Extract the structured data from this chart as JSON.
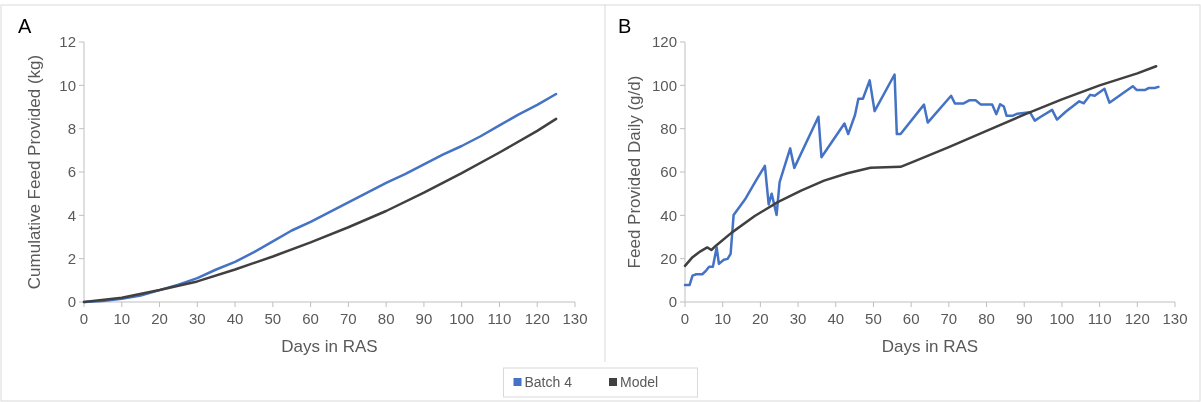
{
  "chart_data": [
    {
      "type": "line",
      "title": "A",
      "xlabel": "Days in RAS",
      "ylabel": "Cumulative Feed Provided (kg)",
      "xlim": [
        0,
        130
      ],
      "xticks": [
        0,
        10,
        20,
        30,
        40,
        50,
        60,
        70,
        80,
        90,
        100,
        110,
        120,
        130
      ],
      "ylim": [
        0,
        12
      ],
      "yticks": [
        0,
        2,
        4,
        6,
        8,
        10,
        12
      ],
      "grid": false,
      "legend": "bottom",
      "marker": "none",
      "series": [
        {
          "name": "Batch 4",
          "color": "#4472c4",
          "x": [
            0,
            5,
            10,
            15,
            20,
            25,
            30,
            35,
            40,
            45,
            50,
            55,
            60,
            65,
            70,
            75,
            80,
            85,
            90,
            95,
            100,
            105,
            110,
            115,
            120,
            125
          ],
          "values": [
            0,
            0.05,
            0.15,
            0.3,
            0.55,
            0.8,
            1.1,
            1.5,
            1.85,
            2.3,
            2.8,
            3.3,
            3.7,
            4.15,
            4.6,
            5.05,
            5.5,
            5.9,
            6.35,
            6.8,
            7.2,
            7.65,
            8.15,
            8.65,
            9.1,
            9.6
          ]
        },
        {
          "name": "Model",
          "color": "#404040",
          "x": [
            0,
            10,
            20,
            30,
            40,
            50,
            60,
            70,
            80,
            90,
            100,
            110,
            120,
            125
          ],
          "values": [
            0,
            0.2,
            0.55,
            0.95,
            1.5,
            2.1,
            2.75,
            3.45,
            4.2,
            5.05,
            5.95,
            6.9,
            7.9,
            8.45
          ]
        }
      ]
    },
    {
      "type": "line",
      "title": "B",
      "xlabel": "Days in RAS",
      "ylabel": "Feed Provided Daily (g/d)",
      "xlim": [
        0,
        130
      ],
      "xticks": [
        0,
        10,
        20,
        30,
        40,
        50,
        60,
        70,
        80,
        90,
        100,
        110,
        120,
        130
      ],
      "ylim": [
        0,
        120
      ],
      "yticks": [
        0,
        20,
        40,
        60,
        80,
        100,
        120
      ],
      "grid": false,
      "marker": "none",
      "series": [
        {
          "color": "#4472c4",
          "x": [
            0,
            1.2,
            2,
            3,
            4.6,
            5.6,
            6.4,
            7.4,
            8.4,
            9,
            10.3,
            11.3,
            12.1,
            12.9,
            15.9,
            18.9,
            21.2,
            22.2,
            23,
            24.3,
            25.1,
            27.9,
            29,
            35.4,
            36.2,
            42.3,
            43.3,
            45.1,
            46,
            47.2,
            49,
            50.3,
            55.6,
            56.2,
            57.2,
            63.4,
            64.4,
            70.6,
            71.6,
            73.8,
            75.4,
            77.1,
            78.5,
            81.5,
            82.6,
            83.6,
            84.6,
            85.3,
            87,
            88.2,
            91.5,
            92.8,
            94.4,
            97.4,
            98.7,
            101,
            104.6,
            105.8,
            107.5,
            108.7,
            111.3,
            112.6,
            118.8,
            119.8,
            122.1,
            123.1,
            124.6,
            125.6
          ],
          "values": [
            7.8,
            7.8,
            12.2,
            12.8,
            12.8,
            14.5,
            16.3,
            16.3,
            25.2,
            17.6,
            19.5,
            19.9,
            22.2,
            40.2,
            47.3,
            56.2,
            62.8,
            45,
            50,
            40.2,
            55.3,
            70.9,
            61.9,
            85.5,
            66.8,
            82.4,
            77.5,
            86.3,
            93.8,
            93.8,
            102.3,
            88.1,
            105,
            77.5,
            77.5,
            91.1,
            82.8,
            95.2,
            91.6,
            91.6,
            93.1,
            93.1,
            91.1,
            91.1,
            86.7,
            91.3,
            90.2,
            86,
            86,
            86.9,
            87.6,
            83.7,
            85.5,
            88.7,
            84.2,
            87.8,
            92.6,
            91.7,
            95.6,
            95.2,
            98.4,
            92,
            99.6,
            97.9,
            97.9,
            98.8,
            98.8,
            99.3
          ]
        },
        {
          "color": "#404040",
          "x": [
            0,
            2,
            4.1,
            5.9,
            7,
            8.2,
            12.3,
            18.5,
            24.6,
            30.8,
            36.9,
            43.1,
            49.2,
            57.2,
            60,
            70,
            80,
            90,
            100,
            110,
            120,
            125
          ],
          "values": [
            16.7,
            20.7,
            23.4,
            25.2,
            24,
            26,
            31.9,
            39.7,
            46.1,
            51.4,
            56,
            59.4,
            62,
            62.4,
            64.3,
            71.5,
            79,
            86.5,
            93.5,
            100,
            105.5,
            108.8
          ]
        }
      ]
    }
  ]
}
